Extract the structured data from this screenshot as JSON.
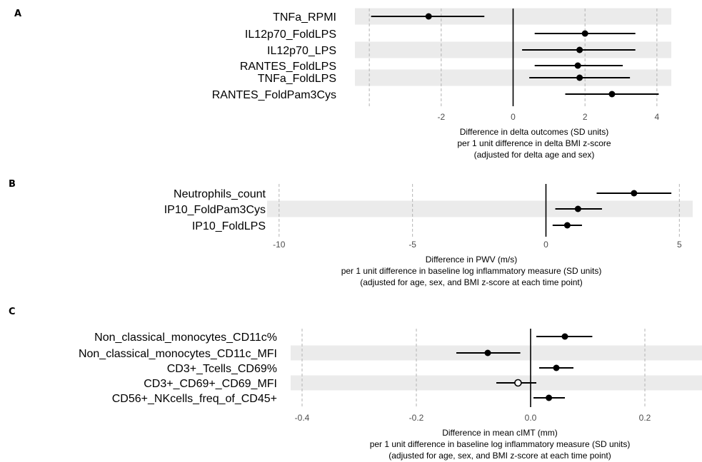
{
  "chart_data": [
    {
      "type": "forest",
      "panel_label": "A",
      "categories": [
        "TNFa_RPMI",
        "IL12p70_FoldLPS",
        "IL12p70_LPS",
        "RANTES_FoldLPS",
        "TNFa_FoldLPS",
        "RANTES_FoldPam3Cys"
      ],
      "estimates": [
        -2.35,
        2.0,
        1.85,
        1.8,
        1.85,
        2.75
      ],
      "ci_lower": [
        -3.95,
        0.6,
        0.25,
        0.6,
        0.45,
        1.45
      ],
      "ci_upper": [
        -0.8,
        3.4,
        3.4,
        3.05,
        3.25,
        4.05
      ],
      "markers": [
        "filled",
        "filled",
        "filled",
        "filled",
        "filled",
        "filled"
      ],
      "xticks": [
        "-2",
        "0",
        "2",
        "4"
      ],
      "xtick_values": [
        -2,
        0,
        2,
        4
      ],
      "gridlines": [
        -4,
        -2,
        0,
        2,
        4
      ],
      "xlim": [
        -4.4,
        4.4
      ],
      "xlabel": [
        "Difference in delta outcomes (SD units)",
        "per 1 unit difference in delta BMI z-score",
        "(adjusted for delta age and sex)"
      ],
      "grid": true,
      "shaded_rows": [
        0,
        2,
        4
      ]
    },
    {
      "type": "forest",
      "panel_label": "B",
      "categories": [
        "Neutrophils_count",
        "IP10_FoldPam3Cys",
        "IP10_FoldLPS"
      ],
      "estimates": [
        3.3,
        1.2,
        0.8
      ],
      "ci_lower": [
        1.9,
        0.35,
        0.25
      ],
      "ci_upper": [
        4.7,
        2.1,
        1.35
      ],
      "markers": [
        "filled",
        "filled",
        "filled"
      ],
      "xticks": [
        "-10",
        "-5",
        "0",
        "5"
      ],
      "xtick_values": [
        -10,
        -5,
        0,
        5
      ],
      "gridlines": [
        -10,
        -5,
        0,
        5
      ],
      "xlim": [
        -10.45,
        5.5
      ],
      "xlabel": [
        "Difference in PWV (m/s)",
        "per 1 unit difference in baseline log inflammatory measure (SD units)",
        "(adjusted for age, sex, and BMI z-score at each time point)"
      ],
      "grid": true,
      "shaded_rows": [
        1
      ]
    },
    {
      "type": "forest",
      "panel_label": "C",
      "categories": [
        "Non_classical_monocytes_CD11c%",
        "Non_classical_monocytes_CD11c_MFI",
        "CD3+_Tcells_CD69%",
        "CD3+_CD69+_CD69_MFI",
        "CD56+_NKcells_freq_of_CD45+"
      ],
      "estimates": [
        0.06,
        -0.075,
        0.045,
        -0.022,
        0.032
      ],
      "ci_lower": [
        0.01,
        -0.13,
        0.015,
        -0.06,
        0.005
      ],
      "ci_upper": [
        0.108,
        -0.018,
        0.075,
        0.01,
        0.06
      ],
      "markers": [
        "filled",
        "filled",
        "filled",
        "open",
        "filled"
      ],
      "xticks": [
        "-0.4",
        "-0.2",
        "0.0",
        "0.2"
      ],
      "xtick_values": [
        -0.4,
        -0.2,
        0.0,
        0.2
      ],
      "gridlines": [
        -0.4,
        -0.2,
        0,
        0.2
      ],
      "xlim": [
        -0.42,
        0.3
      ],
      "xlabel": [
        "Difference in mean cIMT (mm)",
        "per 1 unit difference in baseline log inflammatory measure (SD units)",
        "(adjusted for age, sex, and BMI z-score at each time point)"
      ],
      "grid": true,
      "shaded_rows": [
        1,
        3
      ]
    }
  ],
  "colors": {
    "background": "#ffffff",
    "row_shading": "#ebebeb",
    "gridline": "#b3b3b3",
    "zero_line": "#000000",
    "estimate": "#000000",
    "tick_text": "#4d4d4d",
    "label_text": "#000000"
  }
}
